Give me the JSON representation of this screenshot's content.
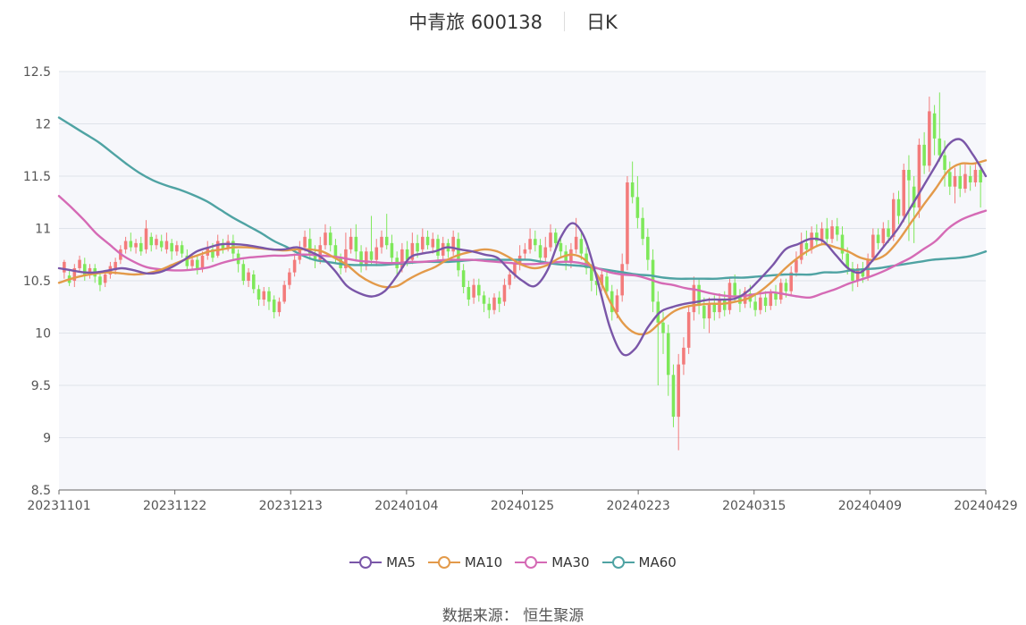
{
  "header": {
    "stock_label": "中青旅 600138",
    "period_label": "日K"
  },
  "footer": {
    "source_label": "数据来源：",
    "source_name": "恒生聚源"
  },
  "colors": {
    "up": "#f37b7b",
    "down": "#7ee85a",
    "ma5": "#7a56a8",
    "ma10": "#e39a4a",
    "ma30": "#d56ab5",
    "ma60": "#4fa3a3",
    "plot_bg": "#f6f7fb",
    "grid": "#dfe3ea"
  },
  "chart_data": {
    "type": "candlestick",
    "ylim": [
      8.5,
      12.5
    ],
    "yticks": [
      "8.5",
      "9",
      "9.5",
      "10",
      "10.5",
      "11",
      "11.5",
      "12",
      "12.5"
    ],
    "xtick_labels": [
      "20231101",
      "20231122",
      "20231213",
      "20240104",
      "20240125",
      "20240223",
      "20240315",
      "20240409",
      "20240429"
    ],
    "grid": "horizontal",
    "legend": {
      "placement": "bottom-center",
      "entries": [
        "MA5",
        "MA10",
        "MA30",
        "MA60"
      ]
    },
    "ma5": [
      10.62,
      10.6,
      10.58,
      10.58,
      10.6,
      10.62,
      10.6,
      10.57,
      10.58,
      10.63,
      10.7,
      10.78,
      10.82,
      10.85,
      10.85,
      10.84,
      10.82,
      10.8,
      10.8,
      10.82,
      10.78,
      10.72,
      10.6,
      10.45,
      10.38,
      10.35,
      10.4,
      10.55,
      10.72,
      10.76,
      10.78,
      10.82,
      10.8,
      10.78,
      10.75,
      10.72,
      10.6,
      10.5,
      10.45,
      10.6,
      10.9,
      11.05,
      10.9,
      10.5,
      10.05,
      9.8,
      9.85,
      10.05,
      10.2,
      10.25,
      10.28,
      10.3,
      10.32,
      10.32,
      10.33,
      10.4,
      10.52,
      10.65,
      10.8,
      10.85,
      10.9,
      10.88,
      10.75,
      10.62,
      10.58,
      10.7,
      10.85,
      11.0,
      11.2,
      11.4,
      11.6,
      11.8,
      11.85,
      11.7,
      11.5
    ],
    "ma10": [
      10.48,
      10.52,
      10.55,
      10.57,
      10.58,
      10.57,
      10.56,
      10.57,
      10.6,
      10.65,
      10.7,
      10.74,
      10.78,
      10.8,
      10.82,
      10.82,
      10.81,
      10.8,
      10.79,
      10.8,
      10.8,
      10.78,
      10.72,
      10.65,
      10.55,
      10.48,
      10.44,
      10.45,
      10.52,
      10.58,
      10.63,
      10.7,
      10.75,
      10.78,
      10.8,
      10.78,
      10.72,
      10.65,
      10.62,
      10.65,
      10.72,
      10.75,
      10.7,
      10.55,
      10.3,
      10.1,
      10.0,
      10.0,
      10.1,
      10.2,
      10.25,
      10.27,
      10.28,
      10.28,
      10.3,
      10.33,
      10.4,
      10.5,
      10.62,
      10.72,
      10.8,
      10.85,
      10.82,
      10.78,
      10.72,
      10.7,
      10.75,
      10.88,
      11.05,
      11.22,
      11.38,
      11.55,
      11.62,
      11.62,
      11.65
    ],
    "ma30": [
      11.31,
      11.2,
      11.08,
      10.95,
      10.85,
      10.75,
      10.68,
      10.63,
      10.61,
      10.6,
      10.6,
      10.61,
      10.63,
      10.67,
      10.7,
      10.72,
      10.73,
      10.74,
      10.74,
      10.75,
      10.75,
      10.74,
      10.73,
      10.71,
      10.69,
      10.68,
      10.67,
      10.67,
      10.68,
      10.68,
      10.69,
      10.7,
      10.7,
      10.7,
      10.69,
      10.68,
      10.67,
      10.66,
      10.66,
      10.67,
      10.68,
      10.68,
      10.66,
      10.62,
      10.58,
      10.56,
      10.55,
      10.52,
      10.48,
      10.46,
      10.43,
      10.41,
      10.38,
      10.36,
      10.35,
      10.36,
      10.38,
      10.39,
      10.37,
      10.35,
      10.34,
      10.38,
      10.42,
      10.47,
      10.51,
      10.55,
      10.6,
      10.66,
      10.72,
      10.8,
      10.88,
      11.0,
      11.08,
      11.13,
      11.17
    ],
    "ma60": [
      12.06,
      11.98,
      11.9,
      11.82,
      11.72,
      11.62,
      11.53,
      11.46,
      11.41,
      11.37,
      11.32,
      11.26,
      11.18,
      11.1,
      11.03,
      10.96,
      10.88,
      10.82,
      10.75,
      10.7,
      10.68,
      10.66,
      10.65,
      10.65,
      10.65,
      10.66,
      10.67,
      10.68,
      10.68,
      10.68,
      10.69,
      10.7,
      10.7,
      10.7,
      10.7,
      10.7,
      10.68,
      10.66,
      10.65,
      10.64,
      10.62,
      10.6,
      10.58,
      10.56,
      10.55,
      10.53,
      10.52,
      10.52,
      10.52,
      10.52,
      10.53,
      10.53,
      10.54,
      10.55,
      10.56,
      10.56,
      10.56,
      10.58,
      10.58,
      10.6,
      10.61,
      10.62,
      10.64,
      10.66,
      10.68,
      10.7,
      10.71,
      10.72,
      10.74,
      10.78
    ],
    "candles": [
      [
        10.58,
        10.68,
        10.7,
        10.52
      ],
      [
        10.55,
        10.48,
        10.6,
        10.45
      ],
      [
        10.5,
        10.62,
        10.66,
        10.44
      ],
      [
        10.62,
        10.7,
        10.74,
        10.58
      ],
      [
        10.66,
        10.55,
        10.72,
        10.5
      ],
      [
        10.58,
        10.62,
        10.66,
        10.52
      ],
      [
        10.62,
        10.54,
        10.66,
        10.48
      ],
      [
        10.54,
        10.46,
        10.58,
        10.4
      ],
      [
        10.48,
        10.56,
        10.6,
        10.44
      ],
      [
        10.56,
        10.64,
        10.68,
        10.52
      ],
      [
        10.6,
        10.68,
        10.72,
        10.56
      ],
      [
        10.7,
        10.8,
        10.84,
        10.66
      ],
      [
        10.8,
        10.88,
        10.92,
        10.76
      ],
      [
        10.88,
        10.82,
        10.96,
        10.78
      ],
      [
        10.82,
        10.86,
        10.9,
        10.76
      ],
      [
        10.86,
        10.78,
        10.92,
        10.74
      ],
      [
        10.8,
        11.0,
        11.08,
        10.76
      ],
      [
        10.92,
        10.84,
        10.96,
        10.78
      ],
      [
        10.84,
        10.9,
        10.94,
        10.8
      ],
      [
        10.88,
        10.82,
        10.94,
        10.78
      ],
      [
        10.8,
        10.88,
        10.96,
        10.76
      ],
      [
        10.86,
        10.78,
        10.9,
        10.7
      ],
      [
        10.78,
        10.84,
        10.88,
        10.74
      ],
      [
        10.84,
        10.76,
        10.88,
        10.72
      ],
      [
        10.74,
        10.64,
        10.8,
        10.6
      ],
      [
        10.64,
        10.7,
        10.76,
        10.6
      ],
      [
        10.7,
        10.62,
        10.74,
        10.56
      ],
      [
        10.62,
        10.74,
        10.78,
        10.58
      ],
      [
        10.74,
        10.82,
        10.88,
        10.7
      ],
      [
        10.8,
        10.72,
        10.86,
        10.68
      ],
      [
        10.74,
        10.88,
        10.94,
        10.72
      ],
      [
        10.86,
        10.8,
        10.9,
        10.76
      ],
      [
        10.82,
        10.88,
        10.94,
        10.78
      ],
      [
        10.88,
        10.76,
        10.94,
        10.7
      ],
      [
        10.76,
        10.66,
        10.8,
        10.58
      ],
      [
        10.66,
        10.5,
        10.7,
        10.46
      ],
      [
        10.5,
        10.58,
        10.62,
        10.44
      ],
      [
        10.56,
        10.42,
        10.6,
        10.38
      ],
      [
        10.42,
        10.32,
        10.46,
        10.26
      ],
      [
        10.32,
        10.4,
        10.44,
        10.26
      ],
      [
        10.4,
        10.3,
        10.44,
        10.22
      ],
      [
        10.32,
        10.2,
        10.36,
        10.14
      ],
      [
        10.2,
        10.3,
        10.34,
        10.16
      ],
      [
        10.3,
        10.46,
        10.5,
        10.28
      ],
      [
        10.46,
        10.58,
        10.62,
        10.42
      ],
      [
        10.58,
        10.7,
        10.76,
        10.54
      ],
      [
        10.7,
        10.82,
        10.88,
        10.66
      ],
      [
        10.82,
        10.92,
        10.98,
        10.78
      ],
      [
        10.9,
        10.76,
        11.0,
        10.7
      ],
      [
        10.76,
        10.7,
        10.84,
        10.62
      ],
      [
        10.7,
        10.84,
        10.92,
        10.66
      ],
      [
        10.84,
        10.96,
        11.04,
        10.8
      ],
      [
        10.96,
        10.84,
        11.02,
        10.78
      ],
      [
        10.84,
        10.72,
        10.9,
        10.66
      ],
      [
        10.72,
        10.62,
        10.76,
        10.56
      ],
      [
        10.62,
        10.8,
        10.96,
        10.58
      ],
      [
        10.8,
        10.92,
        11.0,
        10.76
      ],
      [
        10.92,
        10.78,
        11.04,
        10.7
      ],
      [
        10.78,
        10.64,
        10.84,
        10.58
      ],
      [
        10.64,
        10.78,
        10.82,
        10.6
      ],
      [
        10.78,
        10.7,
        11.12,
        10.66
      ],
      [
        10.7,
        10.82,
        10.9,
        10.64
      ],
      [
        10.82,
        10.92,
        10.98,
        10.76
      ],
      [
        10.92,
        10.84,
        11.14,
        10.8
      ],
      [
        10.86,
        10.72,
        10.94,
        10.66
      ],
      [
        10.72,
        10.62,
        10.78,
        10.56
      ],
      [
        10.62,
        10.8,
        10.86,
        10.58
      ],
      [
        10.8,
        10.7,
        10.88,
        10.64
      ],
      [
        10.7,
        10.86,
        10.96,
        10.66
      ],
      [
        10.86,
        10.78,
        10.94,
        10.72
      ],
      [
        10.8,
        10.92,
        11.0,
        10.76
      ],
      [
        10.92,
        10.84,
        10.98,
        10.8
      ],
      [
        10.82,
        10.9,
        10.96,
        10.76
      ],
      [
        10.9,
        10.74,
        10.94,
        10.7
      ],
      [
        10.74,
        10.86,
        10.92,
        10.7
      ],
      [
        10.86,
        10.78,
        10.9,
        10.72
      ],
      [
        10.78,
        10.92,
        10.98,
        10.74
      ],
      [
        10.9,
        10.6,
        10.96,
        10.54
      ],
      [
        10.6,
        10.44,
        10.66,
        10.38
      ],
      [
        10.44,
        10.32,
        10.5,
        10.26
      ],
      [
        10.34,
        10.46,
        10.52,
        10.28
      ],
      [
        10.46,
        10.36,
        10.52,
        10.3
      ],
      [
        10.36,
        10.28,
        10.4,
        10.2
      ],
      [
        10.28,
        10.22,
        10.34,
        10.14
      ],
      [
        10.22,
        10.34,
        10.38,
        10.18
      ],
      [
        10.34,
        10.28,
        10.4,
        10.2
      ],
      [
        10.3,
        10.46,
        10.52,
        10.26
      ],
      [
        10.46,
        10.56,
        10.6,
        10.42
      ],
      [
        10.56,
        10.66,
        10.7,
        10.52
      ],
      [
        10.66,
        10.74,
        10.84,
        10.6
      ],
      [
        10.76,
        10.8,
        10.86,
        10.7
      ],
      [
        10.8,
        10.9,
        11.0,
        10.76
      ],
      [
        10.9,
        10.84,
        10.98,
        10.78
      ],
      [
        10.84,
        10.72,
        10.9,
        10.66
      ],
      [
        10.72,
        10.82,
        10.92,
        10.68
      ],
      [
        10.82,
        10.96,
        11.04,
        10.78
      ],
      [
        10.96,
        10.86,
        11.0,
        10.8
      ],
      [
        10.86,
        10.78,
        10.92,
        10.72
      ],
      [
        10.78,
        10.68,
        10.84,
        10.6
      ],
      [
        10.68,
        10.8,
        10.86,
        10.62
      ],
      [
        10.8,
        10.92,
        11.1,
        10.76
      ],
      [
        10.9,
        10.76,
        10.98,
        10.7
      ],
      [
        10.76,
        10.62,
        10.82,
        10.56
      ],
      [
        10.62,
        10.5,
        10.66,
        10.4
      ],
      [
        10.5,
        10.46,
        10.54,
        10.36
      ],
      [
        10.46,
        10.56,
        10.6,
        10.4
      ],
      [
        10.54,
        10.4,
        10.6,
        10.34
      ],
      [
        10.4,
        10.2,
        10.46,
        10.12
      ],
      [
        10.2,
        10.36,
        10.42,
        10.14
      ],
      [
        10.36,
        10.66,
        10.76,
        10.3
      ],
      [
        10.66,
        11.44,
        11.5,
        10.6
      ],
      [
        11.44,
        11.3,
        11.64,
        11.24
      ],
      [
        11.3,
        11.1,
        11.5,
        11.0
      ],
      [
        11.1,
        10.9,
        11.2,
        10.84
      ],
      [
        10.92,
        10.7,
        11.0,
        10.6
      ],
      [
        10.7,
        10.3,
        10.8,
        10.2
      ],
      [
        10.3,
        10.1,
        10.4,
        9.5
      ],
      [
        10.1,
        10.0,
        10.2,
        9.8
      ],
      [
        10.0,
        9.6,
        10.08,
        9.4
      ],
      [
        9.6,
        9.2,
        9.7,
        9.1
      ],
      [
        9.2,
        9.7,
        9.8,
        8.88
      ],
      [
        9.7,
        9.86,
        9.96,
        9.6
      ],
      [
        9.86,
        10.2,
        10.26,
        9.8
      ],
      [
        10.2,
        10.46,
        10.54,
        10.12
      ],
      [
        10.46,
        10.26,
        10.52,
        10.18
      ],
      [
        10.26,
        10.14,
        10.34,
        10.04
      ],
      [
        10.14,
        10.28,
        10.34,
        10.0
      ],
      [
        10.28,
        10.2,
        10.36,
        10.12
      ],
      [
        10.2,
        10.32,
        10.38,
        10.14
      ],
      [
        10.32,
        10.22,
        10.4,
        10.16
      ],
      [
        10.22,
        10.48,
        10.52,
        10.18
      ],
      [
        10.48,
        10.36,
        10.56,
        10.3
      ],
      [
        10.36,
        10.28,
        10.42,
        10.2
      ],
      [
        10.28,
        10.4,
        10.44,
        10.24
      ],
      [
        10.38,
        10.3,
        10.46,
        10.24
      ],
      [
        10.3,
        10.22,
        10.36,
        10.16
      ],
      [
        10.22,
        10.34,
        10.38,
        10.18
      ],
      [
        10.34,
        10.26,
        10.4,
        10.2
      ],
      [
        10.26,
        10.38,
        10.42,
        10.22
      ],
      [
        10.38,
        10.32,
        10.46,
        10.26
      ],
      [
        10.32,
        10.48,
        10.52,
        10.28
      ],
      [
        10.48,
        10.4,
        10.52,
        10.34
      ],
      [
        10.4,
        10.58,
        10.64,
        10.36
      ],
      [
        10.58,
        10.7,
        10.78,
        10.54
      ],
      [
        10.7,
        10.86,
        10.96,
        10.66
      ],
      [
        10.86,
        10.8,
        10.98,
        10.74
      ],
      [
        10.8,
        10.96,
        11.02,
        10.76
      ],
      [
        10.96,
        10.88,
        11.04,
        10.82
      ],
      [
        10.88,
        11.0,
        11.06,
        10.84
      ],
      [
        11.0,
        10.9,
        11.1,
        10.86
      ],
      [
        10.9,
        11.02,
        11.08,
        10.86
      ],
      [
        11.02,
        10.94,
        11.1,
        10.88
      ],
      [
        10.94,
        10.76,
        11.02,
        10.7
      ],
      [
        10.76,
        10.62,
        10.82,
        10.56
      ],
      [
        10.62,
        10.5,
        10.68,
        10.4
      ],
      [
        10.5,
        10.62,
        10.66,
        10.44
      ],
      [
        10.62,
        10.54,
        10.68,
        10.48
      ],
      [
        10.54,
        10.7,
        10.76,
        10.5
      ],
      [
        10.72,
        10.94,
        11.0,
        10.68
      ],
      [
        10.94,
        10.86,
        11.0,
        10.8
      ],
      [
        10.86,
        11.0,
        11.06,
        10.82
      ],
      [
        11.0,
        10.92,
        11.08,
        10.86
      ],
      [
        10.92,
        11.28,
        11.34,
        10.88
      ],
      [
        11.28,
        11.12,
        11.36,
        11.04
      ],
      [
        11.12,
        11.56,
        11.62,
        11.06
      ],
      [
        11.56,
        11.46,
        11.7,
        10.88
      ],
      [
        11.4,
        11.2,
        11.5,
        10.86
      ],
      [
        11.2,
        11.8,
        11.86,
        11.1
      ],
      [
        11.8,
        11.6,
        11.92,
        11.52
      ],
      [
        11.6,
        12.12,
        12.26,
        11.54
      ],
      [
        12.1,
        11.86,
        12.18,
        11.7
      ],
      [
        11.86,
        11.7,
        12.3,
        11.64
      ],
      [
        11.7,
        11.56,
        11.84,
        11.4
      ],
      [
        11.54,
        11.4,
        11.64,
        11.32
      ],
      [
        11.4,
        11.5,
        11.58,
        11.24
      ],
      [
        11.5,
        11.38,
        11.62,
        11.3
      ],
      [
        11.38,
        11.52,
        11.62,
        11.34
      ],
      [
        11.5,
        11.44,
        11.6,
        11.36
      ],
      [
        11.44,
        11.56,
        11.62,
        11.4
      ],
      [
        11.56,
        11.44,
        11.62,
        11.2
      ]
    ]
  }
}
